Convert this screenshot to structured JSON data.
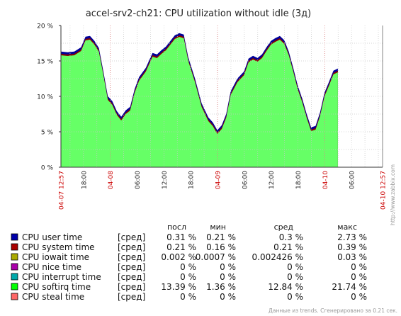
{
  "chart_data": {
    "type": "area",
    "title": "accel-srv2-ch21: CPU utilization without idle (3д)",
    "y_ticks": [
      "20 %",
      "15 %",
      "10 %",
      "5 %",
      "0 %"
    ],
    "ylim": [
      0,
      20
    ],
    "x_ticks": [
      {
        "label": "04-07 12:57",
        "red": true
      },
      {
        "label": "18:00",
        "red": false
      },
      {
        "label": "04-08",
        "red": true
      },
      {
        "label": "06:00",
        "red": false
      },
      {
        "label": "12:00",
        "red": false
      },
      {
        "label": "18:00",
        "red": false
      },
      {
        "label": "04-09",
        "red": true
      },
      {
        "label": "06:00",
        "red": false
      },
      {
        "label": "12:00",
        "red": false
      },
      {
        "label": "18:00",
        "red": false
      },
      {
        "label": "04-10",
        "red": true
      },
      {
        "label": "06:00",
        "red": false
      },
      {
        "label": "04-10 12:57",
        "red": true
      }
    ],
    "x_tick_hours": [
      0,
      5.05,
      11.05,
      17.05,
      23.05,
      29.05,
      35.05,
      41.05,
      47.05,
      53.05,
      59.05,
      65.05,
      72
    ],
    "grid": true,
    "series_colors": {
      "CPU softirq time": "#66ff66",
      "CPU system time": "#880000",
      "CPU user time": "#000099"
    },
    "softirq_points": [
      [
        0,
        15.8
      ],
      [
        1.5,
        15.7
      ],
      [
        3,
        15.8
      ],
      [
        4.5,
        16.4
      ],
      [
        5.5,
        17.9
      ],
      [
        6.5,
        18.0
      ],
      [
        7.5,
        17.3
      ],
      [
        8.5,
        16.3
      ],
      [
        9.5,
        13.0
      ],
      [
        10.5,
        9.5
      ],
      [
        11.5,
        8.8
      ],
      [
        12.5,
        7.4
      ],
      [
        13.5,
        6.6
      ],
      [
        14.5,
        7.5
      ],
      [
        15.5,
        8.0
      ],
      [
        16.5,
        10.5
      ],
      [
        17.5,
        12.2
      ],
      [
        19,
        13.5
      ],
      [
        20.5,
        15.6
      ],
      [
        21.5,
        15.4
      ],
      [
        22.5,
        16.0
      ],
      [
        23.5,
        16.5
      ],
      [
        24.5,
        17.3
      ],
      [
        25.5,
        18.1
      ],
      [
        26.5,
        18.4
      ],
      [
        27.5,
        18.2
      ],
      [
        28.5,
        15.0
      ],
      [
        30,
        12.0
      ],
      [
        31.5,
        8.5
      ],
      [
        33,
        6.5
      ],
      [
        34,
        5.8
      ],
      [
        35,
        4.7
      ],
      [
        36,
        5.4
      ],
      [
        37,
        7.0
      ],
      [
        38,
        10.2
      ],
      [
        39.5,
        12.0
      ],
      [
        41,
        13.0
      ],
      [
        42,
        14.8
      ],
      [
        43,
        15.2
      ],
      [
        44,
        14.9
      ],
      [
        45,
        15.4
      ],
      [
        46,
        16.4
      ],
      [
        47,
        17.3
      ],
      [
        48,
        17.7
      ],
      [
        49,
        18.0
      ],
      [
        50,
        17.4
      ],
      [
        51,
        15.8
      ],
      [
        52,
        13.5
      ],
      [
        53,
        11.0
      ],
      [
        54,
        9.2
      ],
      [
        55,
        7.0
      ],
      [
        56,
        5.1
      ],
      [
        57,
        5.3
      ],
      [
        58,
        7.2
      ],
      [
        59,
        10.0
      ],
      [
        60,
        11.5
      ],
      [
        61,
        13.1
      ],
      [
        62,
        13.4
      ]
    ],
    "system_offset": 0.21,
    "user_offset": 0.31
  },
  "legend": {
    "columns": [
      "посл",
      "мин",
      "сред",
      "макс"
    ],
    "rows": [
      {
        "name": "CPU user time",
        "color": "#0000aa",
        "agg": "[сред]",
        "last": "0.31 %",
        "min": "0.21 %",
        "avg": "0.3 %",
        "max": "2.73 %"
      },
      {
        "name": "CPU system time",
        "color": "#aa0000",
        "agg": "[сред]",
        "last": "0.21 %",
        "min": "0.16 %",
        "avg": "0.21 %",
        "max": "0.39 %"
      },
      {
        "name": "CPU iowait time",
        "color": "#aaaa00",
        "agg": "[сред]",
        "last": "0.002 %",
        "min": "0.0007 %",
        "avg": "0.002426 %",
        "max": "0.03 %"
      },
      {
        "name": "CPU nice time",
        "color": "#aa00aa",
        "agg": "[сред]",
        "last": "0 %",
        "min": "0 %",
        "avg": "0 %",
        "max": "0 %"
      },
      {
        "name": "CPU interrupt time",
        "color": "#00aaaa",
        "agg": "[сред]",
        "last": "0 %",
        "min": "0 %",
        "avg": "0 %",
        "max": "0 %"
      },
      {
        "name": "CPU softirq time",
        "color": "#00ff00",
        "agg": "[сред]",
        "last": "13.39 %",
        "min": "1.36 %",
        "avg": "12.84 %",
        "max": "21.74 %"
      },
      {
        "name": "CPU steal time",
        "color": "#ff6666",
        "agg": "[сред]",
        "last": "0 %",
        "min": "0 %",
        "avg": "0 %",
        "max": "0 %"
      }
    ]
  },
  "watermark": "http://www.zabbix.com",
  "footer": "Данные из trends. Сгенерировано за 0.21 сек."
}
